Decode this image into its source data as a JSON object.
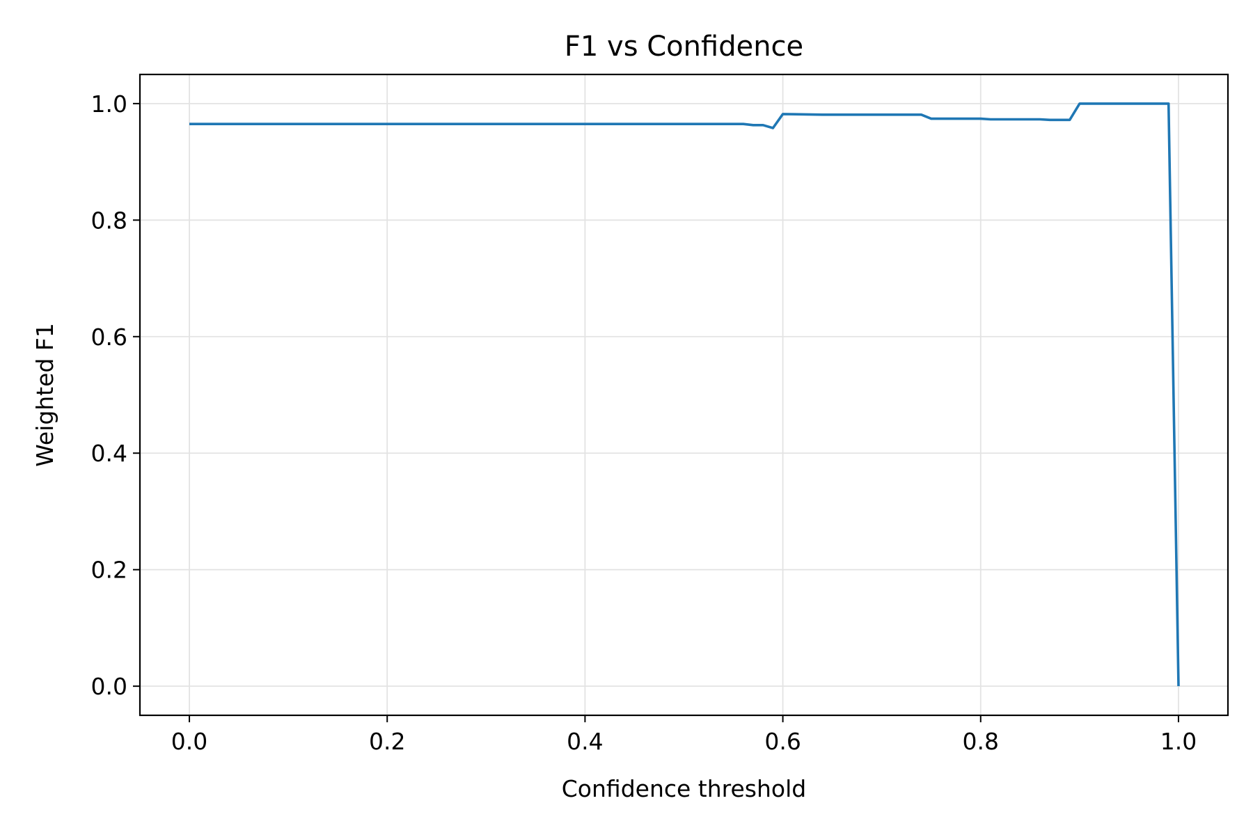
{
  "chart_data": {
    "type": "line",
    "title": "F1 vs Confidence",
    "xlabel": "Confidence threshold",
    "ylabel": "Weighted F1",
    "xlim": [
      -0.05,
      1.05
    ],
    "ylim": [
      -0.05,
      1.05
    ],
    "xticks": [
      0.0,
      0.2,
      0.4,
      0.6,
      0.8,
      1.0
    ],
    "xtick_labels": [
      "0.0",
      "0.2",
      "0.4",
      "0.6",
      "0.8",
      "1.0"
    ],
    "yticks": [
      0.0,
      0.2,
      0.4,
      0.6,
      0.8,
      1.0
    ],
    "ytick_labels": [
      "0.0",
      "0.2",
      "0.4",
      "0.6",
      "0.8",
      "1.0"
    ],
    "grid": true,
    "series": [
      {
        "color": "#1f77b4",
        "x": [
          0.0,
          0.1,
          0.2,
          0.3,
          0.4,
          0.5,
          0.56,
          0.57,
          0.58,
          0.59,
          0.6,
          0.64,
          0.7,
          0.74,
          0.75,
          0.8,
          0.81,
          0.85,
          0.86,
          0.87,
          0.89,
          0.9,
          0.95,
          0.99,
          1.0
        ],
        "y": [
          0.965,
          0.965,
          0.965,
          0.965,
          0.965,
          0.965,
          0.965,
          0.963,
          0.963,
          0.958,
          0.982,
          0.981,
          0.981,
          0.981,
          0.974,
          0.974,
          0.973,
          0.973,
          0.973,
          0.972,
          0.972,
          1.0,
          1.0,
          1.0,
          0.0
        ]
      }
    ]
  }
}
